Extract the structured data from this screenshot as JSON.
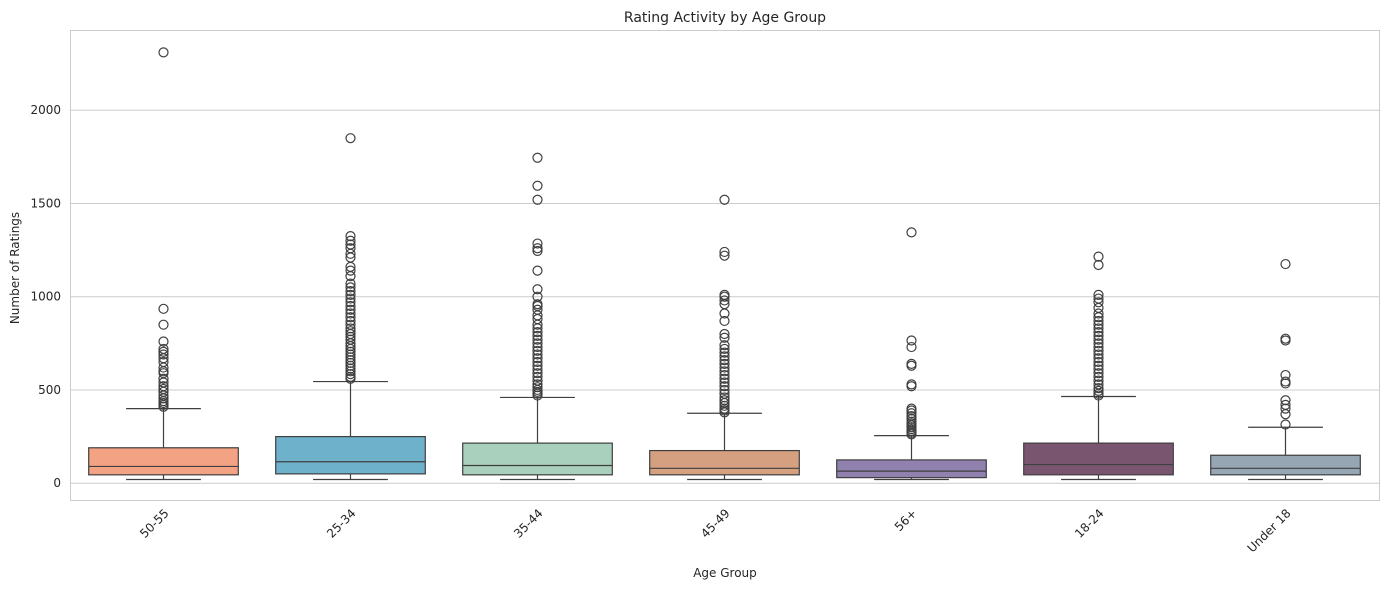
{
  "chart_data": {
    "type": "box",
    "title": "Rating Activity by Age Group",
    "xlabel": "Age Group",
    "ylabel": "Number of Ratings",
    "ylim": [
      -90,
      2430
    ],
    "yticks": [
      0,
      500,
      1000,
      1500,
      2000
    ],
    "grid": "horizontal",
    "categories": [
      "50-55",
      "25-34",
      "35-44",
      "45-49",
      "56+",
      "18-24",
      "Under 18"
    ],
    "colors": [
      "#f4a284",
      "#6eb1cb",
      "#a9d0bd",
      "#d4a080",
      "#9181ae",
      "#7a5570",
      "#96a6b3"
    ],
    "boxes": [
      {
        "min": 20,
        "q1": 45,
        "median": 90,
        "q3": 190,
        "max": 400,
        "outliers": [
          2310,
          935,
          850,
          760,
          720,
          705,
          690,
          670,
          650,
          620,
          600,
          590,
          560,
          540,
          520,
          505,
          490,
          470,
          455,
          440,
          430,
          420,
          410
        ]
      },
      {
        "min": 20,
        "q1": 50,
        "median": 115,
        "q3": 250,
        "max": 545,
        "outliers": [
          1850,
          1325,
          1300,
          1280,
          1260,
          1230,
          1210,
          1160,
          1140,
          1110,
          1070,
          1050,
          1030,
          1010,
          990,
          970,
          950,
          930,
          910,
          890,
          870,
          850,
          830,
          815,
          800,
          785,
          770,
          750,
          735,
          720,
          705,
          690,
          675,
          660,
          645,
          630,
          615,
          600,
          585,
          570,
          560
        ]
      },
      {
        "min": 20,
        "q1": 45,
        "median": 95,
        "q3": 215,
        "max": 460,
        "outliers": [
          1745,
          1595,
          1520,
          1285,
          1260,
          1245,
          1140,
          1040,
          1000,
          960,
          950,
          930,
          900,
          880,
          850,
          830,
          810,
          790,
          770,
          750,
          730,
          710,
          690,
          670,
          650,
          630,
          610,
          590,
          570,
          550,
          530,
          515,
          500,
          490,
          480,
          470
        ]
      },
      {
        "min": 20,
        "q1": 45,
        "median": 80,
        "q3": 175,
        "max": 375,
        "outliers": [
          1520,
          1240,
          1220,
          1010,
          1000,
          980,
          960,
          910,
          870,
          800,
          780,
          740,
          720,
          700,
          680,
          660,
          640,
          620,
          600,
          580,
          560,
          540,
          520,
          500,
          480,
          460,
          445,
          430,
          415,
          400,
          390,
          380
        ]
      },
      {
        "min": 20,
        "q1": 30,
        "median": 65,
        "q3": 125,
        "max": 255,
        "outliers": [
          1345,
          765,
          730,
          640,
          630,
          530,
          520,
          400,
          390,
          375,
          360,
          345,
          330,
          320,
          310,
          300,
          290,
          280,
          270,
          262
        ]
      },
      {
        "min": 20,
        "q1": 45,
        "median": 100,
        "q3": 215,
        "max": 465,
        "outliers": [
          1215,
          1170,
          1010,
          990,
          970,
          940,
          910,
          890,
          870,
          850,
          830,
          810,
          790,
          770,
          750,
          730,
          710,
          690,
          670,
          650,
          630,
          610,
          590,
          570,
          550,
          530,
          510,
          495,
          480,
          470
        ]
      },
      {
        "min": 20,
        "q1": 45,
        "median": 80,
        "q3": 150,
        "max": 300,
        "outliers": [
          1175,
          775,
          765,
          580,
          545,
          535,
          445,
          420,
          400,
          370,
          315
        ]
      }
    ]
  }
}
